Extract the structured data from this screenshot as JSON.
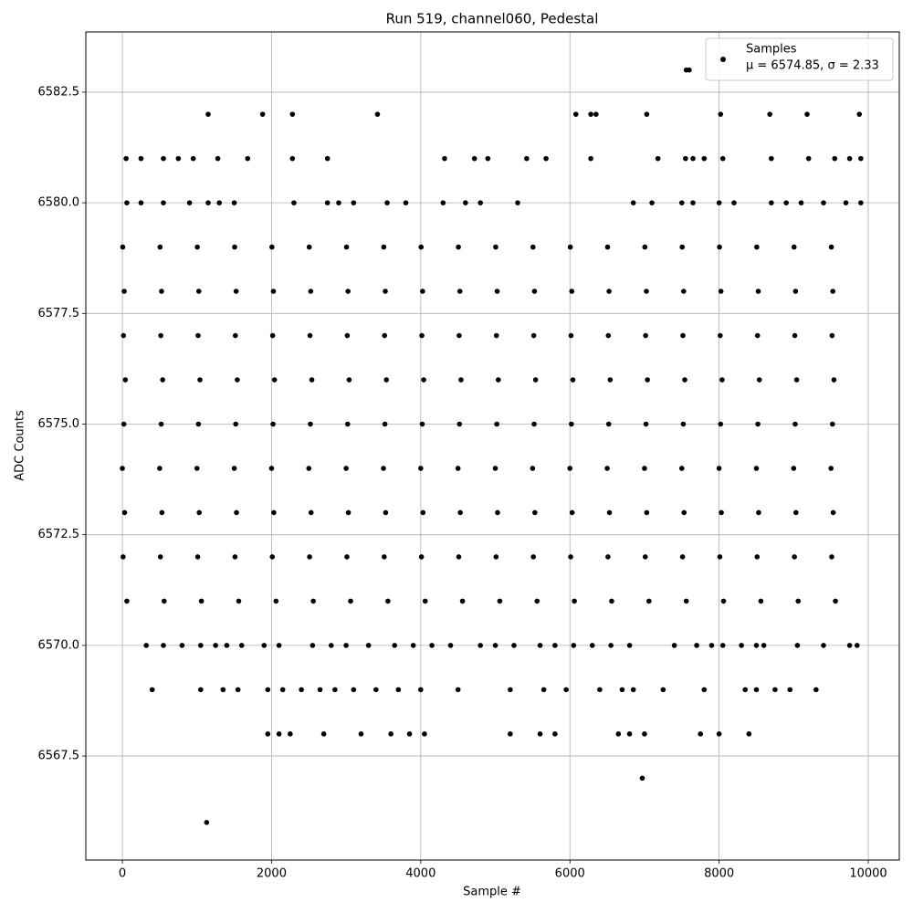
{
  "chart_data": {
    "type": "scatter",
    "title": "Run 519, channel060, Pedestal",
    "xlabel": "Sample #",
    "ylabel": "ADC Counts",
    "color": "#000000",
    "grid": true,
    "legend": {
      "label": "Samples",
      "stats": "μ = 6574.85, σ = 2.33",
      "loc": "upper right"
    },
    "xlim": [
      -490,
      10416
    ],
    "ylim": [
      6565.15,
      6583.86
    ],
    "xticks": [
      0,
      2000,
      4000,
      6000,
      8000,
      10000
    ],
    "yticks": [
      6567.5,
      {
        "value": 6570,
        "label": "6570.0"
      },
      6572.5,
      {
        "value": 6575,
        "label": "6575.0"
      },
      6577.5,
      {
        "value": 6580,
        "label": "6580.0"
      },
      6582.5
    ],
    "x": [
      60,
      560,
      1060,
      1560,
      2060,
      2560,
      3060,
      3560,
      4060,
      4560,
      5060,
      5560,
      6060,
      6560,
      7060,
      7560,
      8060,
      8560,
      9060,
      9560,
      10,
      510,
      1010,
      1510,
      2010,
      2510,
      3010,
      3510,
      4010,
      4510,
      5010,
      5510,
      6010,
      6510,
      7010,
      7510,
      8010,
      8510,
      9010,
      9510,
      30,
      530,
      1030,
      1530,
      2030,
      2530,
      3030,
      3530,
      4030,
      4530,
      5030,
      5530,
      6030,
      6530,
      7030,
      7530,
      8030,
      8530,
      9030,
      9530,
      0,
      500,
      1000,
      1500,
      2000,
      2500,
      3000,
      3500,
      4000,
      4500,
      5000,
      5500,
      6000,
      6500,
      7000,
      7500,
      8000,
      8500,
      9000,
      9500,
      20,
      520,
      1020,
      1520,
      2020,
      2520,
      3020,
      3520,
      4020,
      4520,
      5020,
      5520,
      6020,
      6520,
      7020,
      7520,
      8020,
      8520,
      9020,
      9520,
      40,
      540,
      1040,
      1540,
      2040,
      2540,
      3040,
      3540,
      4040,
      4540,
      5040,
      5540,
      6040,
      6540,
      7040,
      7540,
      8040,
      8540,
      9040,
      9540,
      15,
      515,
      1015,
      1515,
      2015,
      2515,
      3015,
      3515,
      4015,
      4515,
      5015,
      5515,
      6015,
      6515,
      7015,
      7515,
      8015,
      8515,
      9015,
      9515,
      25,
      525,
      1025,
      1525,
      2025,
      2525,
      3025,
      3525,
      4025,
      4525,
      5025,
      5525,
      6025,
      6525,
      7025,
      7525,
      8025,
      8525,
      9025,
      9525,
      5,
      505,
      1005,
      1505,
      2005,
      2505,
      3005,
      3505,
      4005,
      4505,
      5005,
      5505,
      6005,
      6505,
      7005,
      7505,
      8005,
      8505,
      9005,
      9505,
      60,
      250,
      550,
      900,
      1150,
      1300,
      1500,
      2300,
      2750,
      2900,
      3100,
      3550,
      3800,
      4300,
      4600,
      4800,
      5300,
      6850,
      7100,
      7500,
      7650,
      8000,
      8200,
      8700,
      8900,
      9100,
      9400,
      9700,
      9900,
      50,
      250,
      550,
      750,
      950,
      1280,
      1680,
      2280,
      2750,
      4320,
      4720,
      4900,
      5420,
      5680,
      6280,
      7180,
      7550,
      7650,
      7800,
      8050,
      8700,
      9200,
      9550,
      9750,
      9900,
      1150,
      1880,
      2280,
      3420,
      6080,
      6280,
      6350,
      7030,
      8020,
      8680,
      9180,
      9880,
      7560,
      7600,
      320,
      550,
      800,
      1050,
      1250,
      1400,
      1600,
      1900,
      2100,
      2550,
      2800,
      3000,
      3300,
      3650,
      3900,
      4150,
      4400,
      4800,
      5000,
      5250,
      5600,
      5800,
      6050,
      6300,
      6550,
      6800,
      7400,
      7700,
      7900,
      8050,
      8300,
      8500,
      8600,
      9050,
      9400,
      9750,
      9850,
      400,
      1050,
      1350,
      1550,
      1950,
      2150,
      2400,
      2650,
      2850,
      3100,
      3400,
      3700,
      4000,
      4500,
      5200,
      5650,
      5950,
      6400,
      6700,
      6850,
      7250,
      7800,
      8350,
      8500,
      8750,
      8950,
      9300,
      1950,
      2100,
      2250,
      2700,
      3200,
      3600,
      3850,
      4050,
      5200,
      5600,
      5800,
      6650,
      6800,
      7000,
      7750,
      8000,
      8400,
      6970,
      1130
    ],
    "y": [
      6571,
      6571,
      6571,
      6571,
      6571,
      6571,
      6571,
      6571,
      6571,
      6571,
      6571,
      6571,
      6571,
      6571,
      6571,
      6571,
      6571,
      6571,
      6571,
      6571,
      6572,
      6572,
      6572,
      6572,
      6572,
      6572,
      6572,
      6572,
      6572,
      6572,
      6572,
      6572,
      6572,
      6572,
      6572,
      6572,
      6572,
      6572,
      6572,
      6572,
      6573,
      6573,
      6573,
      6573,
      6573,
      6573,
      6573,
      6573,
      6573,
      6573,
      6573,
      6573,
      6573,
      6573,
      6573,
      6573,
      6573,
      6573,
      6573,
      6573,
      6574,
      6574,
      6574,
      6574,
      6574,
      6574,
      6574,
      6574,
      6574,
      6574,
      6574,
      6574,
      6574,
      6574,
      6574,
      6574,
      6574,
      6574,
      6574,
      6574,
      6575,
      6575,
      6575,
      6575,
      6575,
      6575,
      6575,
      6575,
      6575,
      6575,
      6575,
      6575,
      6575,
      6575,
      6575,
      6575,
      6575,
      6575,
      6575,
      6575,
      6576,
      6576,
      6576,
      6576,
      6576,
      6576,
      6576,
      6576,
      6576,
      6576,
      6576,
      6576,
      6576,
      6576,
      6576,
      6576,
      6576,
      6576,
      6576,
      6576,
      6577,
      6577,
      6577,
      6577,
      6577,
      6577,
      6577,
      6577,
      6577,
      6577,
      6577,
      6577,
      6577,
      6577,
      6577,
      6577,
      6577,
      6577,
      6577,
      6577,
      6578,
      6578,
      6578,
      6578,
      6578,
      6578,
      6578,
      6578,
      6578,
      6578,
      6578,
      6578,
      6578,
      6578,
      6578,
      6578,
      6578,
      6578,
      6578,
      6578,
      6579,
      6579,
      6579,
      6579,
      6579,
      6579,
      6579,
      6579,
      6579,
      6579,
      6579,
      6579,
      6579,
      6579,
      6579,
      6579,
      6579,
      6579,
      6579,
      6579,
      6580,
      6580,
      6580,
      6580,
      6580,
      6580,
      6580,
      6580,
      6580,
      6580,
      6580,
      6580,
      6580,
      6580,
      6580,
      6580,
      6580,
      6580,
      6580,
      6580,
      6580,
      6580,
      6580,
      6580,
      6580,
      6580,
      6580,
      6580,
      6580,
      6581,
      6581,
      6581,
      6581,
      6581,
      6581,
      6581,
      6581,
      6581,
      6581,
      6581,
      6581,
      6581,
      6581,
      6581,
      6581,
      6581,
      6581,
      6581,
      6581,
      6581,
      6581,
      6581,
      6581,
      6581,
      6582,
      6582,
      6582,
      6582,
      6582,
      6582,
      6582,
      6582,
      6582,
      6582,
      6582,
      6582,
      6583,
      6583,
      6570,
      6570,
      6570,
      6570,
      6570,
      6570,
      6570,
      6570,
      6570,
      6570,
      6570,
      6570,
      6570,
      6570,
      6570,
      6570,
      6570,
      6570,
      6570,
      6570,
      6570,
      6570,
      6570,
      6570,
      6570,
      6570,
      6570,
      6570,
      6570,
      6570,
      6570,
      6570,
      6570,
      6570,
      6570,
      6570,
      6570,
      6569,
      6569,
      6569,
      6569,
      6569,
      6569,
      6569,
      6569,
      6569,
      6569,
      6569,
      6569,
      6569,
      6569,
      6569,
      6569,
      6569,
      6569,
      6569,
      6569,
      6569,
      6569,
      6569,
      6569,
      6569,
      6569,
      6569,
      6568,
      6568,
      6568,
      6568,
      6568,
      6568,
      6568,
      6568,
      6568,
      6568,
      6568,
      6568,
      6568,
      6568,
      6568,
      6568,
      6568,
      6567,
      6566
    ]
  }
}
